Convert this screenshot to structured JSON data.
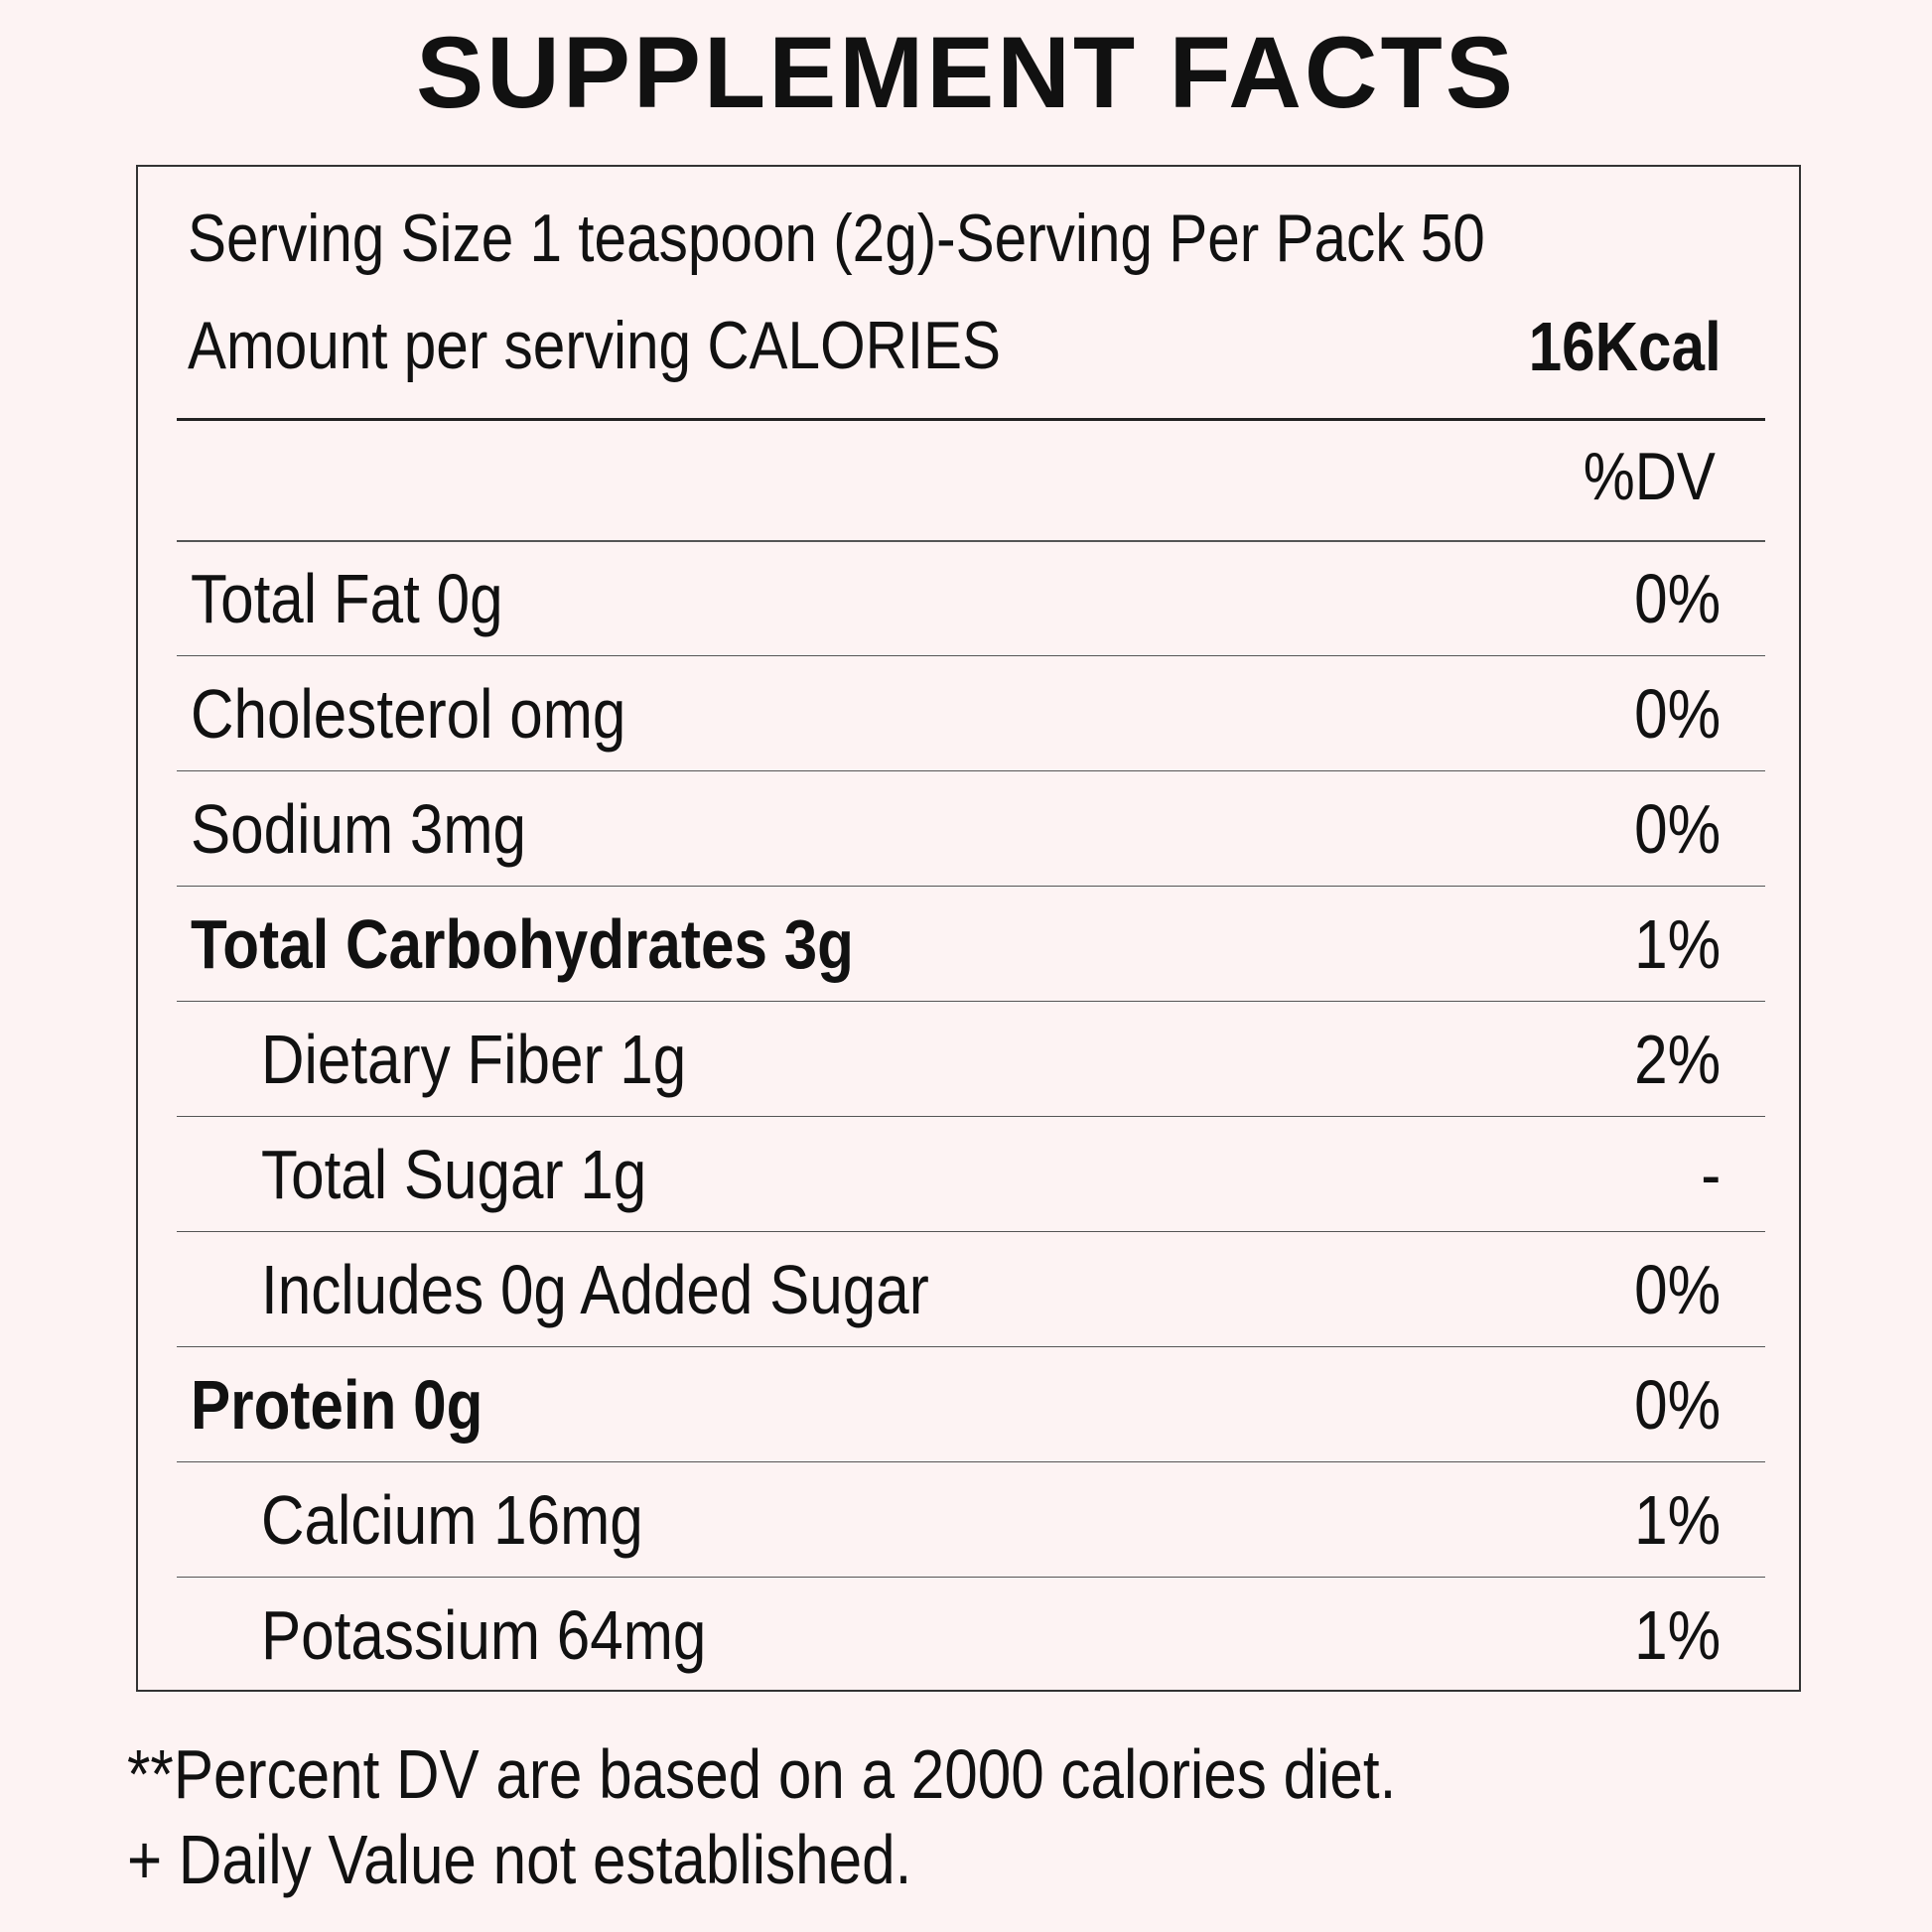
{
  "title": "SUPPLEMENT FACTS",
  "serving": "Serving Size 1 teaspoon (2g)-Serving Per Pack 50",
  "calories": {
    "label": "Amount per serving CALORIES",
    "value": "16Kcal"
  },
  "dv_header": "%DV",
  "nutrients": [
    {
      "name": "Total Fat 0g",
      "dv": "0%"
    },
    {
      "name": "Cholesterol omg",
      "dv": "0%"
    },
    {
      "name": "Sodium 3mg",
      "dv": "0%"
    },
    {
      "name": "Total Carbohydrates 3g",
      "dv": "1%"
    },
    {
      "name": "Dietary Fiber 1g",
      "dv": "2%"
    },
    {
      "name": "Total Sugar 1g",
      "dv": "-"
    },
    {
      "name": "Includes 0g Added Sugar",
      "dv": "0%"
    },
    {
      "name": "Protein 0g",
      "dv": "0%"
    },
    {
      "name": "Calcium 16mg",
      "dv": "1%"
    },
    {
      "name": "Potassium 64mg",
      "dv": "1%"
    }
  ],
  "footnotes": [
    "**Percent DV are based on a 2000 calories diet.",
    "+ Daily Value not established."
  ]
}
